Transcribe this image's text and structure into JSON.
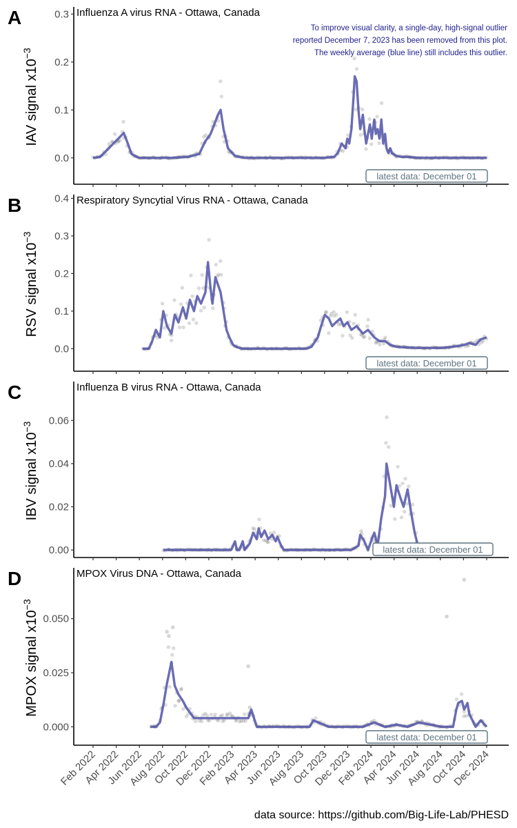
{
  "source_note": "data source: https://github.com/Big-Life-Lab/PHESD",
  "x_ticks": [
    "Feb 2022",
    "Apr 2022",
    "Jun 2022",
    "Aug 2022",
    "Oct 2022",
    "Dec 2022",
    "Feb 2023",
    "Apr 2023",
    "Jun 2023",
    "Aug 2023",
    "Oct 2023",
    "Dec 2023",
    "Feb 2024",
    "Apr 2024",
    "Jun 2024",
    "Aug 2024",
    "Oct 2024",
    "Dec 2024"
  ],
  "colors": {
    "line": "#5558aa",
    "points": "#000000",
    "latest_box": "#5d7380",
    "note_text": "#1f1f8f"
  },
  "chart_data": [
    {
      "type": "line",
      "letter": "A",
      "title": "Influenza A virus RNA - Ottawa, Canada",
      "ylabel_base": "IAV signal x10",
      "ylabel_exp": "−3",
      "ylim": [
        -0.055,
        0.315
      ],
      "yticks": [
        0.0,
        0.1,
        0.2,
        0.3
      ],
      "ytick_labels": [
        "0.0",
        "0.1",
        "0.2",
        "0.3"
      ],
      "latest_label": "latest data: December 01",
      "note": [
        "To improve visual clarity, a single-day, high-signal outlier",
        "reported December 7, 2023 has been removed from this plot.",
        "The weekly average (blue line) still includes this outlier."
      ],
      "series": [
        {
          "x": [
            "2022-01-01",
            "2022-01-20",
            "2022-02-10",
            "2022-02-25",
            "2022-03-10",
            "2022-03-25",
            "2022-04-05",
            "2022-04-15",
            "2022-05-05",
            "2022-06-01",
            "2022-08-01",
            "2022-09-15",
            "2022-10-15",
            "2022-11-01",
            "2022-11-15",
            "2022-11-25",
            "2022-12-05",
            "2022-12-12",
            "2022-12-20",
            "2023-01-01",
            "2023-01-20",
            "2023-02-15",
            "2023-06-01",
            "2023-09-15",
            "2023-10-15",
            "2023-10-25",
            "2023-11-05",
            "2023-11-15",
            "2023-11-20",
            "2023-11-25",
            "2023-12-01",
            "2023-12-07",
            "2023-12-10",
            "2023-12-15",
            "2023-12-20",
            "2023-12-25",
            "2024-01-01",
            "2024-01-05",
            "2024-01-10",
            "2024-01-15",
            "2024-01-20",
            "2024-01-25",
            "2024-02-01",
            "2024-02-05",
            "2024-02-10",
            "2024-02-15",
            "2024-02-20",
            "2024-02-25",
            "2024-03-01",
            "2024-03-05",
            "2024-03-10",
            "2024-03-15",
            "2024-03-20",
            "2024-04-01",
            "2024-04-15",
            "2024-05-01",
            "2024-06-01",
            "2024-08-01",
            "2024-10-01",
            "2024-12-01"
          ],
          "y": [
            0.0,
            0.002,
            0.018,
            0.03,
            0.04,
            0.052,
            0.03,
            0.008,
            0.0,
            0.0,
            0.0,
            0.002,
            0.008,
            0.035,
            0.05,
            0.07,
            0.09,
            0.1,
            0.06,
            0.02,
            0.004,
            0.0,
            0.0,
            0.0,
            0.002,
            0.01,
            0.03,
            0.02,
            0.04,
            0.03,
            0.06,
            0.13,
            0.17,
            0.16,
            0.1,
            0.06,
            0.09,
            0.06,
            0.03,
            0.05,
            0.07,
            0.04,
            0.08,
            0.05,
            0.06,
            0.04,
            0.08,
            0.03,
            0.05,
            0.02,
            0.01,
            0.02,
            0.01,
            0.004,
            0.002,
            0.002,
            0.0,
            0.0,
            0.0,
            0.0
          ]
        }
      ]
    },
    {
      "type": "line",
      "letter": "B",
      "title": "Respiratory Syncytial Virus RNA - Ottawa, Canada",
      "ylabel_base": "RSV signal x10",
      "ylabel_exp": "−3",
      "ylim": [
        -0.06,
        0.41
      ],
      "yticks": [
        0.0,
        0.1,
        0.2,
        0.3,
        0.4
      ],
      "ytick_labels": [
        "0.0",
        "0.1",
        "0.2",
        "0.3",
        "0.4"
      ],
      "latest_label": "latest data: December 01",
      "series": [
        {
          "x": [
            "2022-05-15",
            "2022-06-01",
            "2022-06-10",
            "2022-06-20",
            "2022-07-01",
            "2022-07-10",
            "2022-07-20",
            "2022-08-01",
            "2022-08-10",
            "2022-08-20",
            "2022-09-01",
            "2022-09-10",
            "2022-09-20",
            "2022-10-01",
            "2022-10-10",
            "2022-10-20",
            "2022-11-01",
            "2022-11-08",
            "2022-11-15",
            "2022-11-20",
            "2022-11-28",
            "2022-12-05",
            "2022-12-12",
            "2022-12-20",
            "2022-12-28",
            "2023-01-05",
            "2023-01-15",
            "2023-01-25",
            "2023-02-10",
            "2023-03-01",
            "2023-04-01",
            "2023-06-01",
            "2023-07-15",
            "2023-08-01",
            "2023-08-15",
            "2023-09-01",
            "2023-09-10",
            "2023-09-20",
            "2023-10-01",
            "2023-10-10",
            "2023-10-20",
            "2023-11-01",
            "2023-11-10",
            "2023-11-20",
            "2023-12-01",
            "2023-12-15",
            "2024-01-01",
            "2024-01-15",
            "2024-02-01",
            "2024-02-15",
            "2024-03-01",
            "2024-03-15",
            "2024-04-01",
            "2024-05-01",
            "2024-06-01",
            "2024-07-01",
            "2024-08-01",
            "2024-09-01",
            "2024-10-01",
            "2024-10-15",
            "2024-11-01",
            "2024-11-15",
            "2024-12-01"
          ],
          "y": [
            0.0,
            0.0,
            0.02,
            0.05,
            0.03,
            0.1,
            0.06,
            0.04,
            0.09,
            0.07,
            0.11,
            0.08,
            0.13,
            0.1,
            0.14,
            0.12,
            0.15,
            0.23,
            0.16,
            0.12,
            0.19,
            0.17,
            0.15,
            0.1,
            0.05,
            0.03,
            0.01,
            0.004,
            0.0,
            0.0,
            0.0,
            0.0,
            0.0,
            0.0,
            0.005,
            0.03,
            0.06,
            0.09,
            0.08,
            0.06,
            0.07,
            0.08,
            0.06,
            0.07,
            0.05,
            0.06,
            0.04,
            0.05,
            0.03,
            0.02,
            0.02,
            0.01,
            0.005,
            0.003,
            0.002,
            0.002,
            0.002,
            0.005,
            0.01,
            0.015,
            0.01,
            0.025,
            0.03
          ]
        }
      ]
    },
    {
      "type": "line",
      "letter": "C",
      "title": "Influenza B virus RNA - Ottawa, Canada",
      "ylabel_base": "IBV signal x10",
      "ylabel_exp": "−3",
      "ylim": [
        -0.0035,
        0.078
      ],
      "yticks": [
        0.0,
        0.02,
        0.04,
        0.06
      ],
      "ytick_labels": [
        "0.00",
        "0.02",
        "0.04",
        "0.06"
      ],
      "latest_label": "latest data: December 01",
      "series": [
        {
          "x": [
            "2022-07-10",
            "2022-10-01",
            "2023-01-10",
            "2023-01-20",
            "2023-01-25",
            "2023-02-01",
            "2023-02-10",
            "2023-02-15",
            "2023-03-01",
            "2023-03-10",
            "2023-03-20",
            "2023-03-25",
            "2023-04-01",
            "2023-04-10",
            "2023-04-20",
            "2023-05-01",
            "2023-05-10",
            "2023-05-15",
            "2023-05-25",
            "2023-06-01",
            "2023-08-01",
            "2023-10-01",
            "2023-12-01",
            "2023-12-20",
            "2023-12-25",
            "2024-01-05",
            "2024-01-15",
            "2024-01-25",
            "2024-02-01",
            "2024-02-10",
            "2024-02-20",
            "2024-03-01",
            "2024-03-05",
            "2024-03-15",
            "2024-03-25",
            "2024-04-01",
            "2024-04-10",
            "2024-04-20",
            "2024-05-01",
            "2024-05-10",
            "2024-05-20",
            "2024-06-01",
            "2024-07-01",
            "2024-09-01",
            "2024-12-01"
          ],
          "y": [
            0.0,
            0.0,
            0.0,
            0.004,
            0.0,
            0.0,
            0.004,
            0.0,
            0.003,
            0.008,
            0.005,
            0.01,
            0.006,
            0.009,
            0.005,
            0.007,
            0.004,
            0.006,
            0.002,
            0.0,
            0.0,
            0.0,
            0.0,
            0.002,
            0.007,
            0.004,
            0.0,
            0.005,
            0.008,
            0.002,
            0.015,
            0.025,
            0.04,
            0.03,
            0.02,
            0.03,
            0.025,
            0.02,
            0.028,
            0.018,
            0.008,
            0.0,
            0.0,
            0.0,
            0.0
          ]
        }
      ]
    },
    {
      "type": "line",
      "letter": "D",
      "title": "MPOX Virus DNA - Ottawa, Canada",
      "ylabel_base": "MPOX signal x10",
      "ylabel_exp": "−3",
      "ylim": [
        -0.0085,
        0.0735
      ],
      "yticks": [
        0.0,
        0.025,
        0.05
      ],
      "ytick_labels": [
        "0.000",
        "0.025",
        "0.050"
      ],
      "latest_label": "latest data: December 01",
      "series": [
        {
          "x": [
            "2022-06-05",
            "2022-06-20",
            "2022-07-01",
            "2022-07-10",
            "2022-07-20",
            "2022-08-01",
            "2022-08-10",
            "2022-08-20",
            "2022-09-01",
            "2022-09-10",
            "2022-10-01",
            "2023-01-15",
            "2023-02-25",
            "2023-03-05",
            "2023-03-20",
            "2023-04-01",
            "2023-06-01",
            "2023-08-10",
            "2023-08-20",
            "2023-10-01",
            "2023-12-01",
            "2024-01-01",
            "2024-02-01",
            "2024-03-01",
            "2024-04-01",
            "2024-05-01",
            "2024-06-01",
            "2024-08-01",
            "2024-08-15",
            "2024-09-01",
            "2024-09-10",
            "2024-09-15",
            "2024-09-25",
            "2024-10-01",
            "2024-10-10",
            "2024-10-15",
            "2024-11-01",
            "2024-11-15",
            "2024-12-01"
          ],
          "y": [
            0.0,
            0.0,
            0.002,
            0.01,
            0.02,
            0.03,
            0.019,
            0.015,
            0.012,
            0.009,
            0.004,
            0.004,
            0.004,
            0.008,
            0.0,
            0.0,
            0.0,
            0.0,
            0.003,
            0.0,
            0.0,
            0.0,
            0.002,
            0.0,
            0.001,
            0.0,
            0.002,
            0.0,
            0.0,
            0.0,
            0.008,
            0.011,
            0.012,
            0.008,
            0.011,
            0.006,
            0.0,
            0.003,
            0.0
          ]
        }
      ],
      "points": [
        {
          "x": "2022-07-20",
          "y": 0.044
        },
        {
          "x": "2022-07-25",
          "y": 0.042
        },
        {
          "x": "2022-08-05",
          "y": 0.046
        },
        {
          "x": "2023-02-25",
          "y": 0.028
        },
        {
          "x": "2024-08-15",
          "y": 0.051
        },
        {
          "x": "2024-10-01",
          "y": 0.068
        },
        {
          "x": "2022-08-20",
          "y": 0.012
        },
        {
          "x": "2023-03-01",
          "y": 0.009
        }
      ]
    }
  ]
}
